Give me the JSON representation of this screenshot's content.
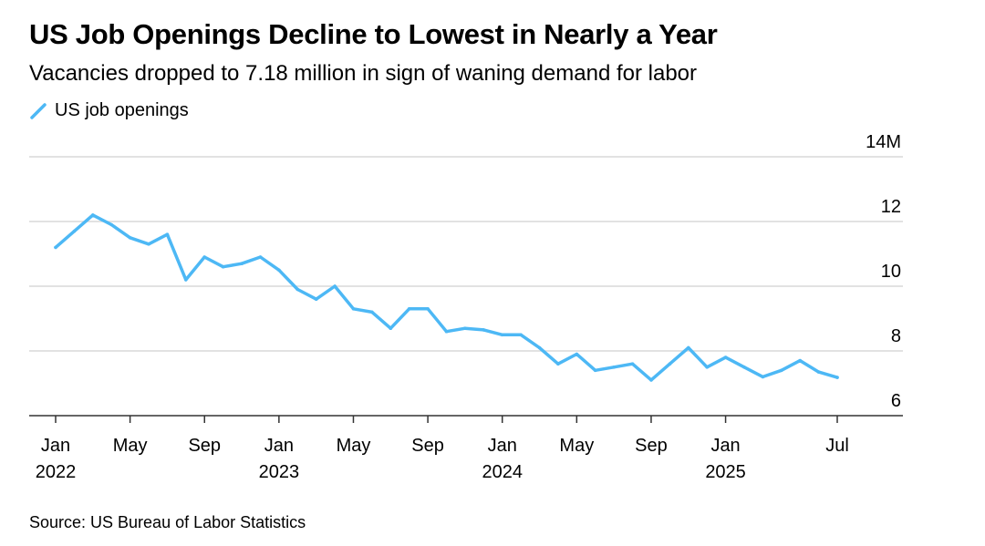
{
  "title": "US Job Openings Decline to Lowest in Nearly a Year",
  "subtitle": "Vacancies dropped to 7.18 million in sign of waning demand for labor",
  "source": "Source: US Bureau of Labor Statistics",
  "chart_data": {
    "type": "line",
    "title": "US Job Openings Decline to Lowest in Nearly a Year",
    "subtitle": "Vacancies dropped to 7.18 million in sign of waning demand for labor",
    "xlabel": "",
    "ylabel": "",
    "ylim": [
      6,
      14
    ],
    "y_ticks": [
      6,
      8,
      10,
      12,
      14
    ],
    "y_tick_labels": [
      "6",
      "8",
      "10",
      "12",
      "14M"
    ],
    "y_axis_position": "right",
    "grid": true,
    "legend": "top-left",
    "color": "#4db8f5",
    "x_ticks": [
      {
        "date": "2022-01",
        "line1": "Jan",
        "line2": "2022"
      },
      {
        "date": "2022-05",
        "line1": "May",
        "line2": ""
      },
      {
        "date": "2022-09",
        "line1": "Sep",
        "line2": ""
      },
      {
        "date": "2023-01",
        "line1": "Jan",
        "line2": "2023"
      },
      {
        "date": "2023-05",
        "line1": "May",
        "line2": ""
      },
      {
        "date": "2023-09",
        "line1": "Sep",
        "line2": ""
      },
      {
        "date": "2024-01",
        "line1": "Jan",
        "line2": "2024"
      },
      {
        "date": "2024-05",
        "line1": "May",
        "line2": ""
      },
      {
        "date": "2024-09",
        "line1": "Sep",
        "line2": ""
      },
      {
        "date": "2025-01",
        "line1": "Jan",
        "line2": "2025"
      },
      {
        "date": "2025-07",
        "line1": "Jul",
        "line2": ""
      }
    ],
    "series": [
      {
        "name": "US job openings",
        "x": [
          "2022-01",
          "2022-02",
          "2022-03",
          "2022-04",
          "2022-05",
          "2022-06",
          "2022-07",
          "2022-08",
          "2022-09",
          "2022-10",
          "2022-11",
          "2022-12",
          "2023-01",
          "2023-02",
          "2023-03",
          "2023-04",
          "2023-05",
          "2023-06",
          "2023-07",
          "2023-08",
          "2023-09",
          "2023-10",
          "2023-11",
          "2023-12",
          "2024-01",
          "2024-02",
          "2024-03",
          "2024-04",
          "2024-05",
          "2024-06",
          "2024-07",
          "2024-08",
          "2024-09",
          "2024-10",
          "2024-11",
          "2024-12",
          "2025-01",
          "2025-02",
          "2025-03",
          "2025-04",
          "2025-05",
          "2025-06",
          "2025-07"
        ],
        "values": [
          11.2,
          11.7,
          12.2,
          11.9,
          11.5,
          11.3,
          11.6,
          10.2,
          10.9,
          10.6,
          10.7,
          10.9,
          10.5,
          9.9,
          9.6,
          10.0,
          9.3,
          9.2,
          8.7,
          9.3,
          9.3,
          8.6,
          8.7,
          8.65,
          8.5,
          8.5,
          8.1,
          7.6,
          7.9,
          7.4,
          7.5,
          7.6,
          7.1,
          7.6,
          8.1,
          7.5,
          7.8,
          7.5,
          7.2,
          7.4,
          7.7,
          7.35,
          7.18
        ]
      }
    ]
  }
}
